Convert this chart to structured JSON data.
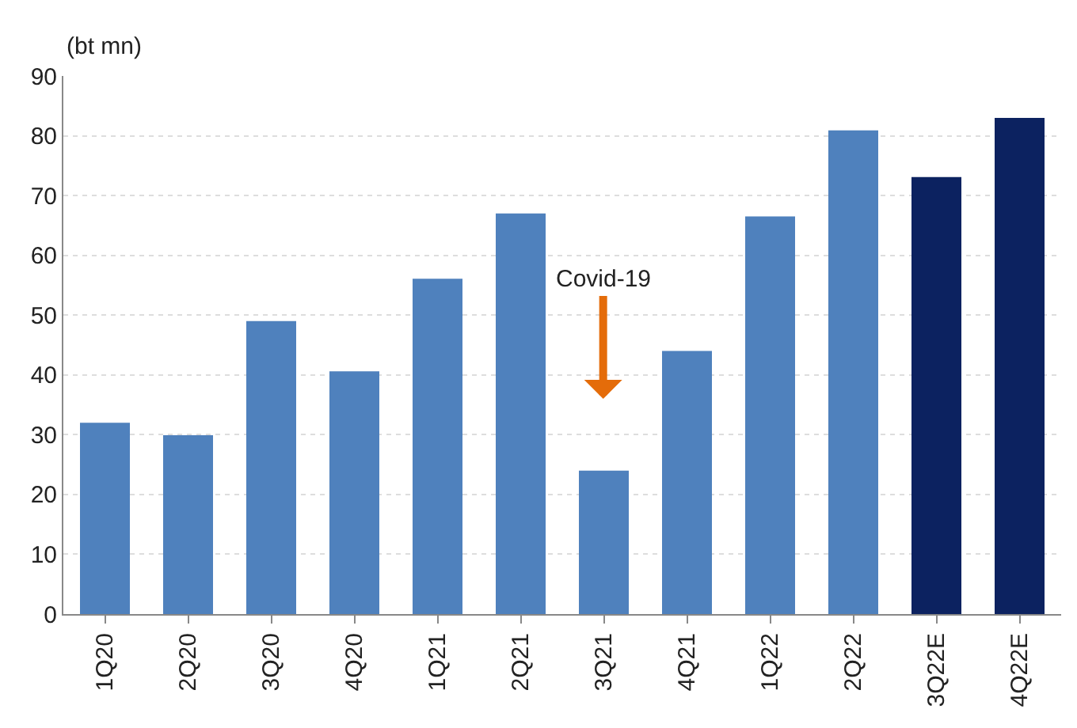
{
  "chart_data": {
    "type": "bar",
    "ylabel": "(bt mn)",
    "categories": [
      "1Q20",
      "2Q20",
      "3Q20",
      "4Q20",
      "1Q21",
      "2Q21",
      "3Q21",
      "4Q21",
      "1Q22",
      "2Q22",
      "3Q22E",
      "4Q22E"
    ],
    "values": [
      32,
      29.9,
      49,
      40.6,
      56.1,
      67,
      24,
      44,
      66.5,
      80.9,
      73.1,
      83
    ],
    "colors": [
      "#4f81bd",
      "#4f81bd",
      "#4f81bd",
      "#4f81bd",
      "#4f81bd",
      "#4f81bd",
      "#4f81bd",
      "#4f81bd",
      "#4f81bd",
      "#4f81bd",
      "#0c2260",
      "#0c2260"
    ],
    "ylim": [
      0,
      90
    ],
    "yticks": [
      0,
      10,
      20,
      30,
      40,
      50,
      60,
      70,
      80,
      90
    ],
    "grid": "y",
    "annotations": [
      "Covid-19"
    ]
  }
}
